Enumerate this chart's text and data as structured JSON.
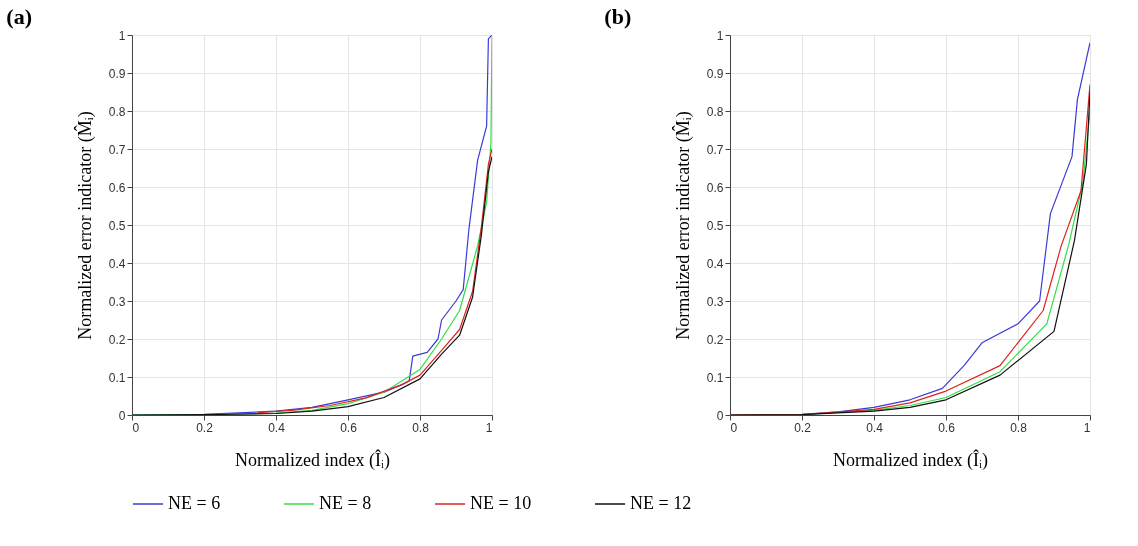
{
  "chart_data": [
    {
      "type": "line",
      "title": "(a)",
      "xlabel": "Normalized index (Îᵢ)",
      "ylabel": "Normalized error indicator (M̂ᵢ)",
      "xlim": [
        0,
        1
      ],
      "ylim": [
        0,
        1
      ],
      "xticks": [
        0,
        0.2,
        0.4,
        0.6,
        0.8,
        1
      ],
      "yticks": [
        0,
        0.1,
        0.2,
        0.3,
        0.4,
        0.5,
        0.6,
        0.7,
        0.8,
        0.9,
        1
      ],
      "grid": true,
      "legend": "bottom",
      "marker": "none",
      "line_style": "solid",
      "series": [
        {
          "name": "NE = 6",
          "color": "#3a3ad8",
          "x": [
            0,
            0.2,
            0.4,
            0.5,
            0.6,
            0.7,
            0.75,
            0.77,
            0.78,
            0.82,
            0.85,
            0.86,
            0.9,
            0.92,
            0.936,
            0.96,
            0.985,
            0.99,
            1
          ],
          "values": [
            0,
            0.002,
            0.01,
            0.02,
            0.04,
            0.06,
            0.08,
            0.09,
            0.155,
            0.165,
            0.2,
            0.25,
            0.3,
            0.33,
            0.49,
            0.67,
            0.76,
            0.99,
            1
          ]
        },
        {
          "name": "NE = 8",
          "color": "#33dd44",
          "x": [
            0,
            0.2,
            0.4,
            0.5,
            0.6,
            0.7,
            0.8,
            0.86,
            0.91,
            0.96,
            0.985,
            0.997,
            1
          ],
          "values": [
            0,
            0.001,
            0.005,
            0.012,
            0.03,
            0.06,
            0.12,
            0.2,
            0.275,
            0.445,
            0.56,
            0.715,
            1
          ]
        },
        {
          "name": "NE = 10",
          "color": "#dd2222",
          "x": [
            0.35,
            0.45,
            0.55,
            0.65,
            0.75,
            0.8,
            0.86,
            0.91,
            0.946,
            0.97,
            0.99,
            1
          ],
          "values": [
            0.006,
            0.013,
            0.025,
            0.045,
            0.08,
            0.105,
            0.17,
            0.225,
            0.325,
            0.49,
            0.66,
            0.7
          ]
        },
        {
          "name": "NE = 12",
          "color": "#111111",
          "x": [
            0,
            0.2,
            0.4,
            0.5,
            0.6,
            0.7,
            0.8,
            0.86,
            0.91,
            0.946,
            0.97,
            0.99,
            1
          ],
          "values": [
            0,
            0.001,
            0.004,
            0.01,
            0.022,
            0.046,
            0.095,
            0.16,
            0.21,
            0.31,
            0.47,
            0.64,
            0.68
          ]
        }
      ]
    },
    {
      "type": "line",
      "title": "(b)",
      "xlabel": "Normalized index (Îᵢ)",
      "ylabel": "Normalized error indicator (M̂ᵢ)",
      "xlim": [
        0,
        1
      ],
      "ylim": [
        0,
        1
      ],
      "xticks": [
        0,
        0.2,
        0.4,
        0.6,
        0.8,
        1
      ],
      "yticks": [
        0,
        0.1,
        0.2,
        0.3,
        0.4,
        0.5,
        0.6,
        0.7,
        0.8,
        0.9,
        1
      ],
      "grid": true,
      "legend": "bottom",
      "marker": "none",
      "line_style": "solid",
      "series": [
        {
          "name": "NE = 6",
          "color": "#3a3ad8",
          "x": [
            0,
            0.2,
            0.3,
            0.4,
            0.5,
            0.59,
            0.65,
            0.7,
            0.8,
            0.86,
            0.89,
            0.95,
            0.965,
            1
          ],
          "values": [
            0,
            0.002,
            0.008,
            0.02,
            0.04,
            0.07,
            0.13,
            0.19,
            0.24,
            0.3,
            0.53,
            0.68,
            0.83,
            0.98
          ]
        },
        {
          "name": "NE = 8",
          "color": "#33dd44",
          "x": [
            0,
            0.2,
            0.4,
            0.5,
            0.6,
            0.75,
            0.88,
            0.94,
            0.98,
            1
          ],
          "values": [
            0,
            0.001,
            0.012,
            0.025,
            0.046,
            0.114,
            0.24,
            0.445,
            0.61,
            0.8
          ]
        },
        {
          "name": "NE = 10",
          "color": "#dd2222",
          "x": [
            0,
            0.2,
            0.4,
            0.5,
            0.6,
            0.75,
            0.87,
            0.92,
            0.975,
            1
          ],
          "values": [
            0,
            0.001,
            0.015,
            0.032,
            0.063,
            0.13,
            0.275,
            0.445,
            0.59,
            0.87
          ]
        },
        {
          "name": "NE = 12",
          "color": "#111111",
          "x": [
            0,
            0.2,
            0.4,
            0.5,
            0.6,
            0.75,
            0.9,
            0.957,
            0.99,
            1
          ],
          "values": [
            0,
            0.001,
            0.01,
            0.02,
            0.04,
            0.105,
            0.22,
            0.46,
            0.66,
            0.85
          ]
        }
      ]
    }
  ]
}
